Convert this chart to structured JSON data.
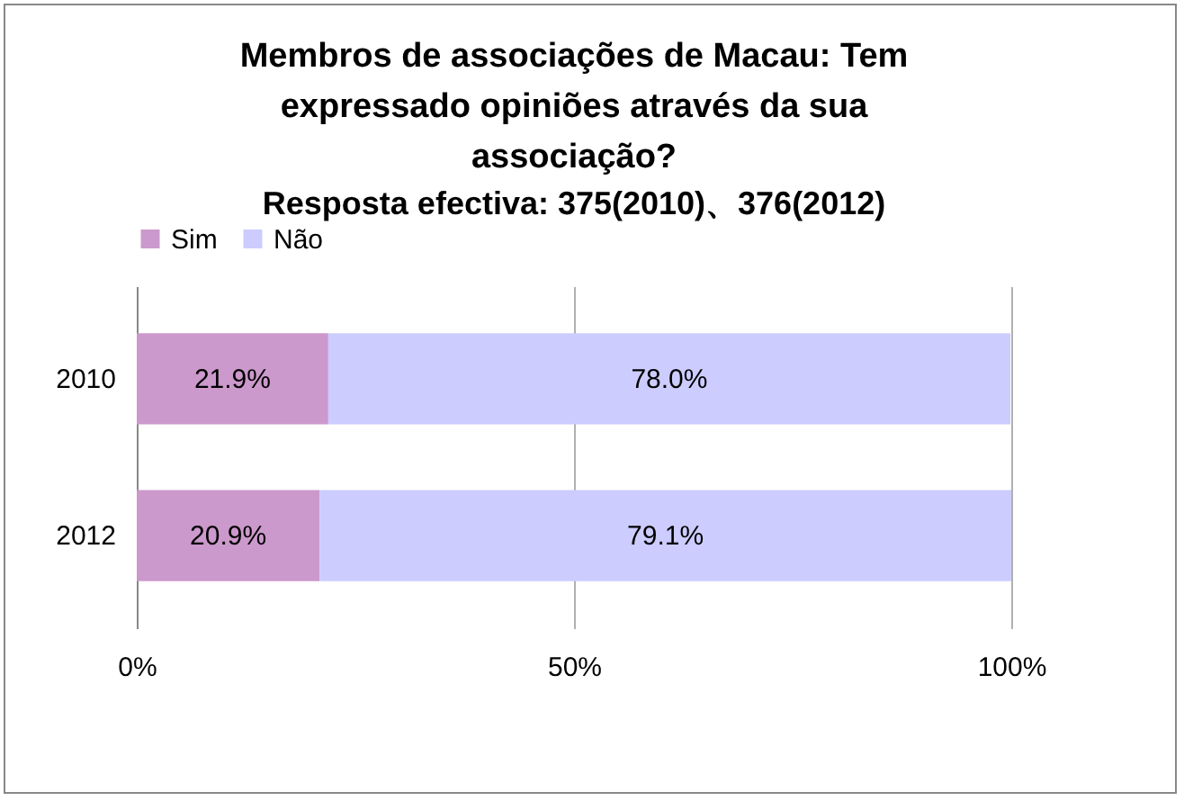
{
  "chart_data": {
    "type": "bar",
    "orientation": "horizontal",
    "stacked": true,
    "title": "Membros de associações de Macau: Tem expressado opiniões através da sua associação?",
    "subtitle": "Resposta efectiva: 375(2010)、376(2012)",
    "categories": [
      "2010",
      "2012"
    ],
    "series": [
      {
        "name": "Sim",
        "color": "#cc99cc",
        "values": [
          21.9,
          20.9
        ]
      },
      {
        "name": "Não",
        "color": "#ccccff",
        "values": [
          78.0,
          79.1
        ]
      }
    ],
    "value_labels": [
      [
        "21.9%",
        "20.9%"
      ],
      [
        "78.0%",
        "79.1%"
      ]
    ],
    "xlim": [
      0,
      100
    ],
    "xticks": [
      {
        "value": 0,
        "label": "0%"
      },
      {
        "value": 50,
        "label": "50%"
      },
      {
        "value": 100,
        "label": "100%"
      }
    ],
    "grid": "x",
    "legend": "top"
  }
}
